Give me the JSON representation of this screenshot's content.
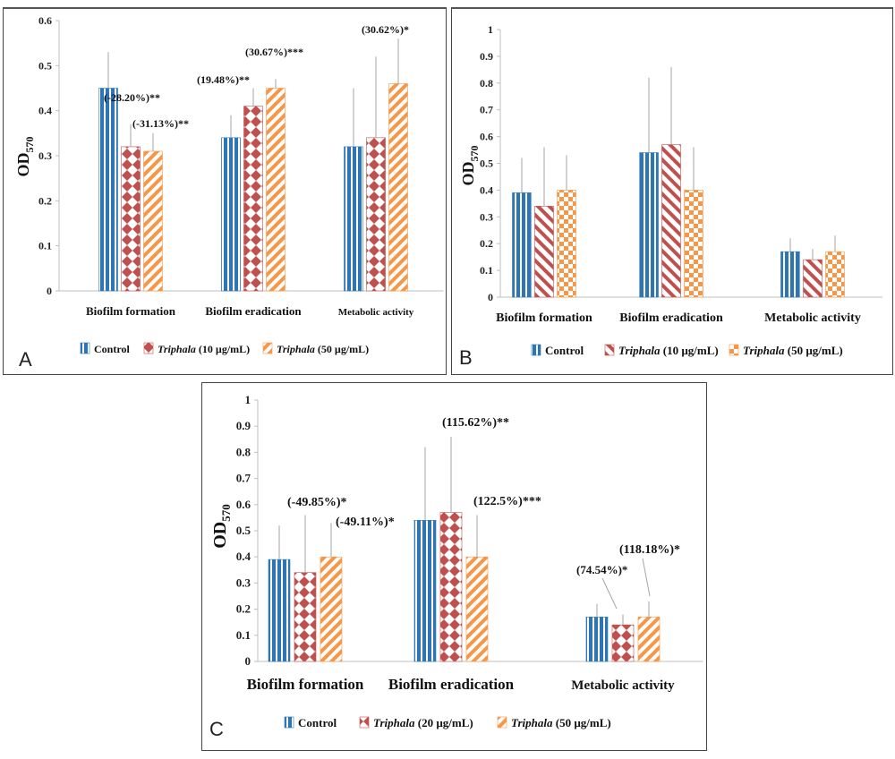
{
  "colors": {
    "control": "#2e75b6",
    "triphala_low": "#c0504d",
    "triphala_high": "#f79646",
    "axis": "#bfbfbf",
    "error_bar": "#a6a6a6"
  },
  "chart_data": [
    {
      "panel_label": "A",
      "type": "bar",
      "ylabel_main": "OD",
      "ylabel_sub": "570",
      "ylim": [
        0,
        0.6
      ],
      "yticks": [
        "0",
        "0.1",
        "0.2",
        "0.3",
        "0.4",
        "0.5",
        "0.6"
      ],
      "grid": false,
      "legend_position": "bottom",
      "categories": [
        "Biofilm formation",
        "Biofilm eradication",
        "Metabolic activity"
      ],
      "series": [
        {
          "name": "Control",
          "legend_italic": "",
          "legend_rest": "Control",
          "pattern": "vlines",
          "values": [
            0.45,
            0.34,
            0.32
          ],
          "errors": [
            0.08,
            0.05,
            0.13
          ]
        },
        {
          "name": "Triphala (10 µg/mL)",
          "legend_italic": "Triphala",
          "legend_rest": " (10 µg/mL)",
          "pattern": "diamonds",
          "values": [
            0.32,
            0.41,
            0.34
          ],
          "errors": [
            0.05,
            0.04,
            0.18
          ]
        },
        {
          "name": "Triphala (50 µg/mL)",
          "legend_italic": "Triphala",
          "legend_rest": " (50 µg/mL)",
          "pattern": "diagonal",
          "values": [
            0.31,
            0.45,
            0.46
          ],
          "errors": [
            0.04,
            0.02,
            0.1
          ]
        }
      ],
      "annotations": [
        {
          "text": "(-28.20%)**"
        },
        {
          "text": "(-31.13%)**"
        },
        {
          "text": "(19.48%)**"
        },
        {
          "text": "(30.67%)***"
        },
        {
          "text": "(30.62%)*"
        }
      ]
    },
    {
      "panel_label": "B",
      "type": "bar",
      "ylabel_main": "OD",
      "ylabel_sub": "570",
      "ylim": [
        0,
        1
      ],
      "yticks": [
        "0",
        "0.1",
        "0.2",
        "0.3",
        "0.4",
        "0.5",
        "0.6",
        "0.7",
        "0.8",
        "0.9",
        "1"
      ],
      "grid": false,
      "legend_position": "bottom",
      "categories": [
        "Biofilm formation",
        "Biofilm eradication",
        "Metabolic activity"
      ],
      "series": [
        {
          "name": "Control",
          "legend_italic": "",
          "legend_rest": "Control",
          "pattern": "vlines",
          "values": [
            0.39,
            0.54,
            0.17
          ],
          "errors": [
            0.13,
            0.28,
            0.05
          ]
        },
        {
          "name": "Triphala (10 µg/mL)",
          "legend_italic": "Triphala",
          "legend_rest": " (10 µg/mL)",
          "pattern": "backdiag",
          "values": [
            0.34,
            0.57,
            0.14
          ],
          "errors": [
            0.22,
            0.29,
            0.04
          ]
        },
        {
          "name": "Triphala (50 µg/mL)",
          "legend_italic": "Triphala",
          "legend_rest": " (50 µg/mL)",
          "pattern": "checker",
          "values": [
            0.4,
            0.4,
            0.17
          ],
          "errors": [
            0.13,
            0.16,
            0.06
          ]
        }
      ],
      "annotations": []
    },
    {
      "panel_label": "C",
      "type": "bar",
      "ylabel_main": "OD",
      "ylabel_sub": "570",
      "ylim": [
        0,
        1
      ],
      "yticks": [
        "0",
        "0.1",
        "0.2",
        "0.3",
        "0.4",
        "0.5",
        "0.6",
        "0.7",
        "0.8",
        "0.9",
        "1"
      ],
      "grid": false,
      "legend_position": "bottom",
      "categories": [
        "Biofilm formation",
        "Biofilm eradication",
        "Metabolic activity"
      ],
      "series": [
        {
          "name": "Control",
          "legend_italic": "",
          "legend_rest": "Control",
          "pattern": "vlines",
          "values": [
            0.39,
            0.54,
            0.17
          ],
          "errors": [
            0.13,
            0.28,
            0.05
          ]
        },
        {
          "name": "Triphala (20 µg/mL)",
          "legend_italic": "Triphala",
          "legend_rest": " (20 µg/mL)",
          "pattern": "diamonds",
          "values": [
            0.34,
            0.57,
            0.14
          ],
          "errors": [
            0.22,
            0.29,
            0.04
          ]
        },
        {
          "name": "Triphala (50 µg/mL)",
          "legend_italic": "Triphala",
          "legend_rest": " (50 µg/mL)",
          "pattern": "diagonal",
          "values": [
            0.4,
            0.4,
            0.17
          ],
          "errors": [
            0.13,
            0.16,
            0.06
          ]
        }
      ],
      "annotations": [
        {
          "text": "(-49.85%)*"
        },
        {
          "text": "(-49.11%)*"
        },
        {
          "text": "(115.62%)**"
        },
        {
          "text": "(122.5%)***"
        },
        {
          "text": "(74.54%)*"
        },
        {
          "text": "(118.18%)*"
        }
      ]
    }
  ]
}
